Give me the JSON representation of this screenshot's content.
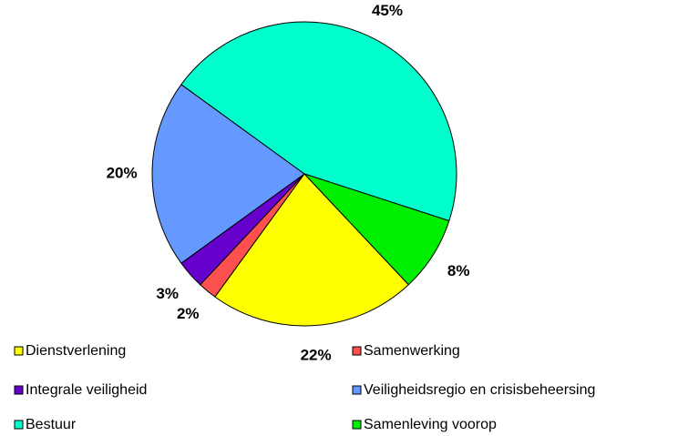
{
  "chart_data": {
    "type": "pie",
    "categories": [
      "Dienstverlening",
      "Samenwerking",
      "Integrale veiligheid",
      "Veiligheidsregio en crisisbeheersing",
      "Bestuur",
      "Samenleving voorop"
    ],
    "values": [
      22,
      2,
      3,
      20,
      45,
      8
    ],
    "value_labels": [
      "22%",
      "2%",
      "3%",
      "20%",
      "45%",
      "8%"
    ],
    "colors": [
      "#ffff00",
      "#ff5050",
      "#6600cc",
      "#6699ff",
      "#00ffcc",
      "#00ee00"
    ],
    "legend": "bottom"
  }
}
